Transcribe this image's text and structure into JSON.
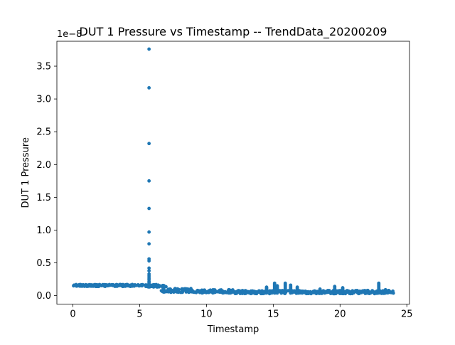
{
  "chart_data": {
    "type": "scatter",
    "title": "DUT 1 Pressure vs Timestamp -- TrendData_20200209",
    "xlabel": "Timestamp",
    "ylabel": "DUT 1 Pressure",
    "y_offset_text": "1e−8",
    "xlim": [
      -1.2,
      25.2
    ],
    "ylim": [
      -0.13,
      3.88
    ],
    "x_ticks": [
      0,
      5,
      10,
      15,
      20,
      25
    ],
    "x_tick_labels": [
      "0",
      "5",
      "10",
      "15",
      "20",
      "25"
    ],
    "y_ticks": [
      0.0,
      0.5,
      1.0,
      1.5,
      2.0,
      2.5,
      3.0,
      3.5
    ],
    "y_tick_labels": [
      "0.0",
      "0.5",
      "1.0",
      "1.5",
      "2.0",
      "2.5",
      "3.0",
      "3.5"
    ],
    "grid": false,
    "marker_color": "#1f77b4",
    "spike": {
      "x": 5.7,
      "values": [
        3.76,
        3.17,
        2.32,
        1.75,
        1.33,
        0.97,
        0.79,
        0.56,
        0.53,
        0.42,
        0.38,
        0.33,
        0.3,
        0.27,
        0.25,
        0.22,
        0.2
      ]
    },
    "bands": [
      {
        "x": [
          0.0,
          5.6
        ],
        "y": [
          0.14,
          0.17
        ]
      },
      {
        "x": [
          5.6,
          6.6
        ],
        "y": [
          0.13,
          0.17
        ]
      },
      {
        "x": [
          6.6,
          7.0
        ],
        "y": [
          0.05,
          0.16
        ]
      },
      {
        "x": [
          7.0,
          9.0
        ],
        "y": [
          0.05,
          0.11
        ]
      },
      {
        "x": [
          9.0,
          12.0
        ],
        "y": [
          0.04,
          0.09
        ]
      },
      {
        "x": [
          12.0,
          24.0
        ],
        "y": [
          0.03,
          0.08
        ]
      }
    ],
    "bumps": [
      {
        "x": 14.5,
        "y": 0.13
      },
      {
        "x": 15.1,
        "y": 0.19
      },
      {
        "x": 15.3,
        "y": 0.15
      },
      {
        "x": 15.9,
        "y": 0.19
      },
      {
        "x": 16.3,
        "y": 0.16
      },
      {
        "x": 16.8,
        "y": 0.13
      },
      {
        "x": 18.5,
        "y": 0.1
      },
      {
        "x": 19.6,
        "y": 0.14
      },
      {
        "x": 20.2,
        "y": 0.12
      },
      {
        "x": 22.9,
        "y": 0.19
      },
      {
        "x": 23.4,
        "y": 0.09
      }
    ]
  }
}
